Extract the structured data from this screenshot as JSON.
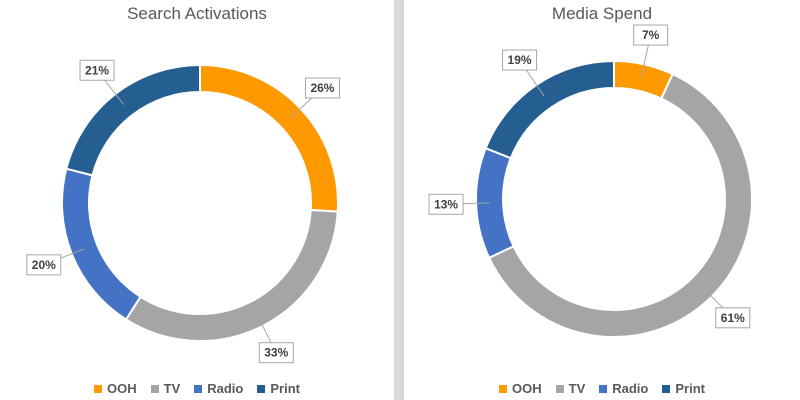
{
  "chart_data": [
    {
      "type": "pie",
      "title": "Search Activations",
      "categories": [
        "OOH",
        "TV",
        "Radio",
        "Print"
      ],
      "values": [
        26,
        33,
        20,
        21
      ],
      "labels": [
        "26%",
        "33%",
        "20%",
        "21%"
      ],
      "colors": [
        "#ff9900",
        "#a5a5a5",
        "#4472c4",
        "#255e91"
      ],
      "legend": "bottom"
    },
    {
      "type": "pie",
      "title": "Media Spend",
      "categories": [
        "OOH",
        "TV",
        "Radio",
        "Print"
      ],
      "values": [
        7,
        61,
        13,
        19
      ],
      "labels": [
        "7%",
        "61%",
        "13%",
        "19%"
      ],
      "colors": [
        "#ff9900",
        "#a5a5a5",
        "#4472c4",
        "#255e91"
      ],
      "legend": "bottom"
    }
  ]
}
